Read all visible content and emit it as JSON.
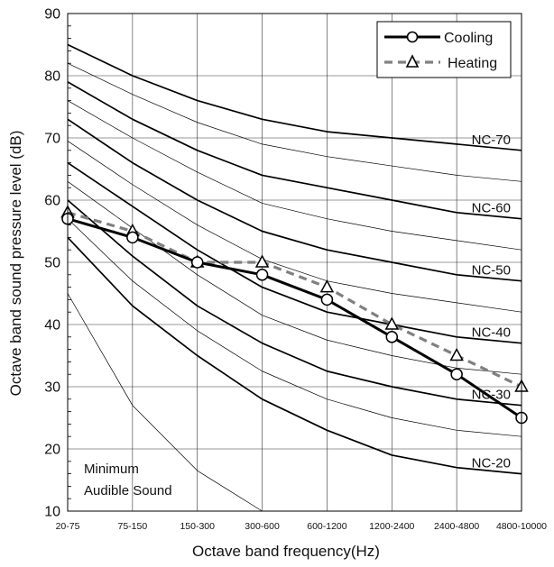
{
  "chart_data": {
    "type": "line",
    "title": "",
    "xlabel": "Octave band frequency(Hz)",
    "ylabel": "Octave band sound pressure level (dB)",
    "ylim": [
      10,
      90
    ],
    "y_ticks": [
      10,
      20,
      30,
      40,
      50,
      60,
      70,
      80,
      90
    ],
    "grid": true,
    "legend_position": "top-right",
    "categories": [
      "20-75",
      "75-150",
      "150-300",
      "300-600",
      "600-1200",
      "1200-2400",
      "2400-4800",
      "4800-10000"
    ],
    "series": [
      {
        "name": "Cooling",
        "style": "solid-circle",
        "color": "#000000",
        "values": [
          57,
          54,
          50,
          48,
          44,
          38,
          32,
          25
        ]
      },
      {
        "name": "Heating",
        "style": "dashed-triangle",
        "color": "#808080",
        "values": [
          58,
          55,
          50,
          50,
          46,
          40,
          35,
          30
        ]
      }
    ],
    "nc_curves": [
      {
        "label": "NC-70",
        "values": [
          85,
          80,
          76,
          73,
          71,
          70,
          69,
          68
        ]
      },
      {
        "label": "",
        "values": [
          82,
          77,
          72.5,
          69,
          67,
          65.5,
          64,
          63
        ]
      },
      {
        "label": "NC-60",
        "values": [
          79,
          73,
          68,
          64,
          62,
          60,
          58,
          57
        ]
      },
      {
        "label": "",
        "values": [
          76,
          70,
          64.5,
          59.5,
          57,
          55,
          53.5,
          52
        ]
      },
      {
        "label": "NC-50",
        "values": [
          73,
          66,
          60,
          55,
          52,
          50,
          48,
          47
        ]
      },
      {
        "label": "",
        "values": [
          69.5,
          62.5,
          56,
          50.5,
          47,
          45,
          43.5,
          42
        ]
      },
      {
        "label": "NC-40",
        "values": [
          66,
          59,
          52,
          46,
          42,
          40,
          38,
          37
        ]
      },
      {
        "label": "",
        "values": [
          63,
          55.5,
          48,
          41.5,
          37.5,
          35,
          33,
          32
        ]
      },
      {
        "label": "NC-30",
        "values": [
          60,
          51,
          43,
          37,
          32.5,
          30,
          28,
          27
        ]
      },
      {
        "label": "",
        "values": [
          57,
          47,
          39,
          32.5,
          28,
          25,
          23,
          22
        ]
      },
      {
        "label": "NC-20",
        "values": [
          54,
          43,
          35,
          28,
          23,
          19,
          17,
          16
        ]
      },
      {
        "label": "",
        "values": [
          45,
          27,
          16.5,
          10
        ]
      }
    ],
    "annotation": [
      "Minimum",
      "Audible Sound"
    ]
  }
}
